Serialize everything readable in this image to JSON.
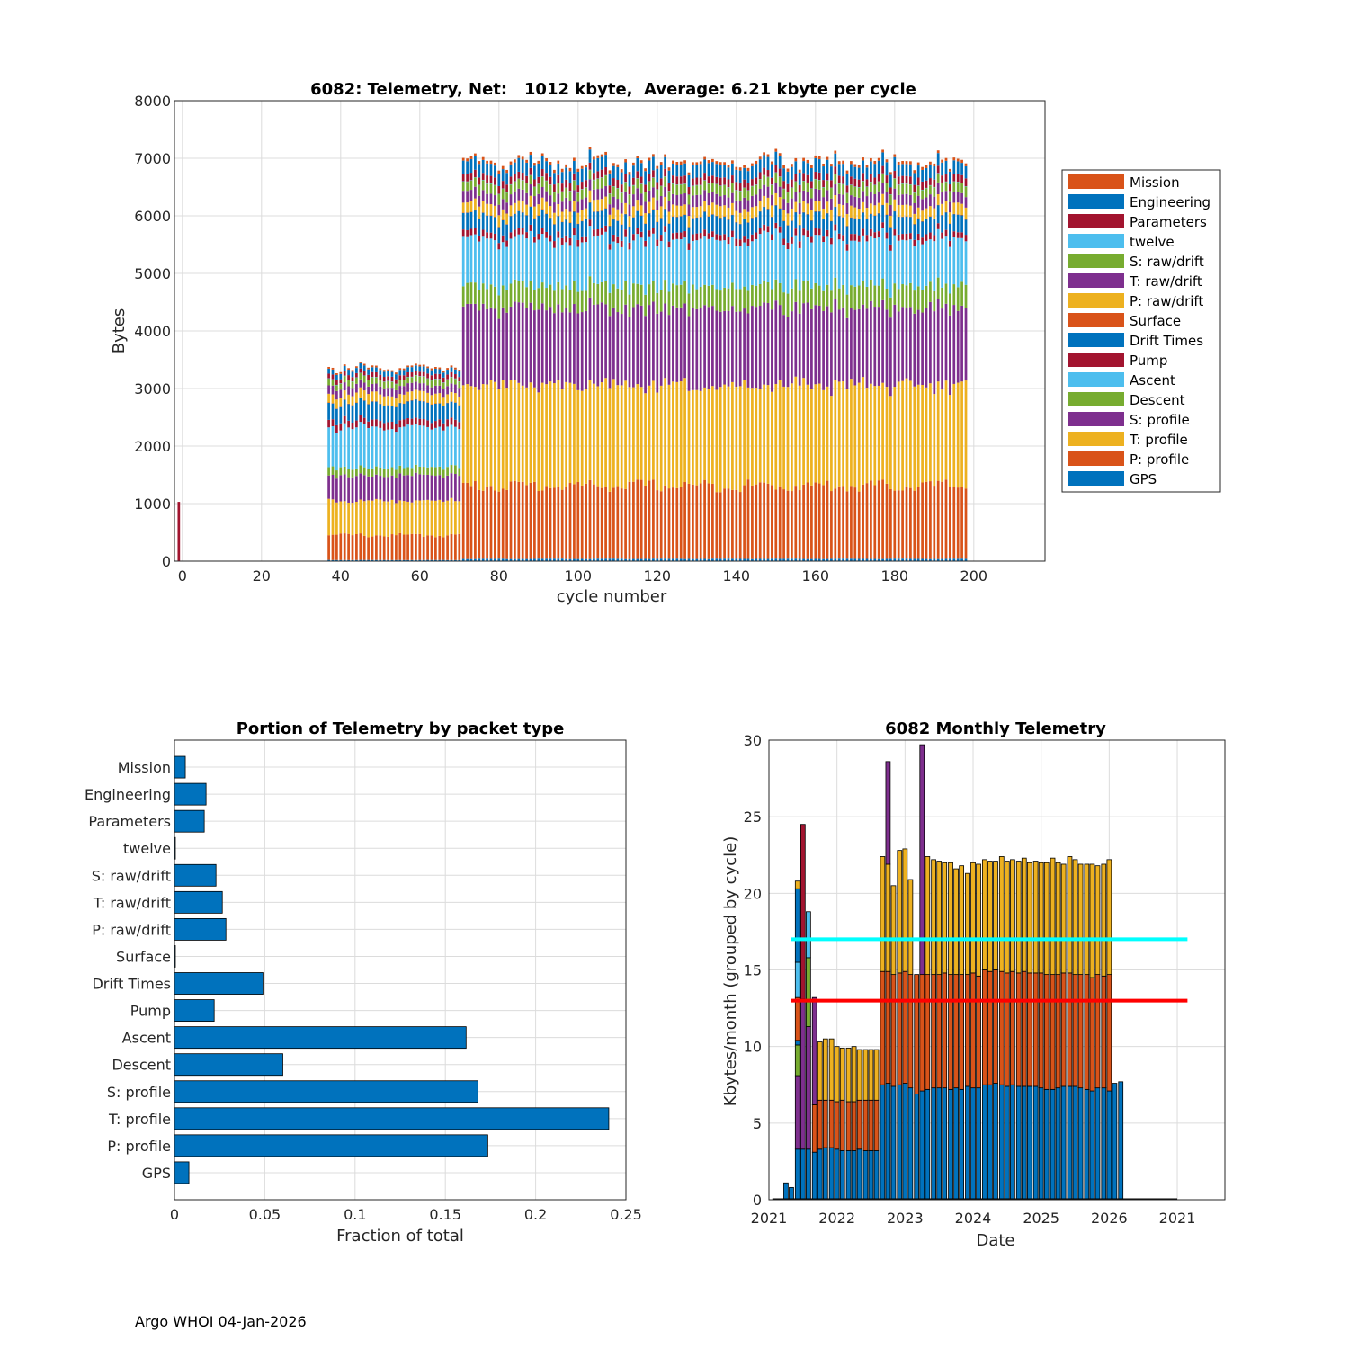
{
  "footer": "Argo WHOI 04-Jan-2026",
  "colors": {
    "blue": "#0072BD",
    "orange": "#D95319",
    "yellow": "#EDB120",
    "purple": "#7E2F8E",
    "green": "#77AC30",
    "cyan": "#4DBEEE",
    "red": "#A2142F",
    "ref_cyan": "#00FFFF",
    "ref_red": "#FF0000"
  },
  "chart_data": [
    {
      "type": "bar",
      "stacked": true,
      "title": "6082: Telemetry, Net:   1012 kbyte,  Average: 6.21 kbyte per cycle",
      "xlabel": "cycle number",
      "ylabel": "Bytes",
      "xlim": [
        -2,
        218
      ],
      "ylim": [
        0,
        8000
      ],
      "xticks": [
        0,
        20,
        40,
        60,
        80,
        100,
        120,
        140,
        160,
        180,
        200
      ],
      "yticks": [
        0,
        1000,
        2000,
        3000,
        4000,
        5000,
        6000,
        7000,
        8000
      ],
      "legend_position": "outside-right",
      "legend": [
        "Mission",
        "Engineering",
        "Parameters",
        "twelve",
        "S: raw/drift",
        "T: raw/drift",
        "P: raw/drift",
        "Surface",
        "Drift Times",
        "Pump",
        "Ascent",
        "Descent",
        "S: profile",
        "T: profile",
        "P: profile",
        "GPS"
      ],
      "legend_colors": [
        "#D95319",
        "#0072BD",
        "#A2142F",
        "#4DBEEE",
        "#77AC30",
        "#7E2F8E",
        "#EDB120",
        "#D95319",
        "#0072BD",
        "#A2142F",
        "#4DBEEE",
        "#77AC30",
        "#7E2F8E",
        "#EDB120",
        "#D95319",
        "#0072BD"
      ],
      "stack_order": [
        "GPS",
        "P: profile",
        "T: profile",
        "S: profile",
        "Descent",
        "Ascent",
        "Pump",
        "Drift Times",
        "Surface",
        "P: raw/drift",
        "T: raw/drift",
        "S: raw/drift",
        "twelve",
        "Parameters",
        "Engineering",
        "Mission"
      ],
      "groups": [
        {
          "name": "cycle 0",
          "cycles": [
            -1,
            0
          ],
          "components": {
            "Parameters": 1030
          }
        },
        {
          "name": "cycles 37-70",
          "cycles": [
            37,
            70
          ],
          "components": {
            "GPS": 20,
            "P: profile": 430,
            "T: profile": 590,
            "S: profile": 440,
            "Descent": 140,
            "Ascent": 700,
            "Pump": 120,
            "Drift Times": 300,
            "Surface": 5,
            "P: raw/drift": 160,
            "T: raw/drift": 140,
            "S: raw/drift": 110,
            "twelve": 5,
            "Parameters": 80,
            "Engineering": 90,
            "Mission": 30
          }
        },
        {
          "name": "cycles 71-198",
          "cycles": [
            71,
            198
          ],
          "components": {
            "GPS": 40,
            "P: profile": 1270,
            "T: profile": 1750,
            "S: profile": 1330,
            "Descent": 380,
            "Ascent": 810,
            "Pump": 110,
            "Drift Times": 290,
            "Surface": 5,
            "P: raw/drift": 190,
            "T: raw/drift": 190,
            "S: raw/drift": 170,
            "twelve": 5,
            "Parameters": 130,
            "Engineering": 220,
            "Mission": 50
          }
        }
      ],
      "totals_approx": {
        "cycles_37_70": [
          3330,
          3350,
          3290,
          3340,
          3360,
          3340,
          3220,
          3180,
          3270,
          3130,
          3100,
          3120,
          3200,
          3150,
          3180,
          3110,
          3120,
          3230,
          3210,
          3160,
          3150,
          3190,
          3110,
          3100,
          3220,
          3140,
          3180,
          3080,
          3100,
          3170,
          3130,
          3090,
          3160,
          3260
        ],
        "cycles_71_198_range": [
          6250,
          7480
        ]
      }
    },
    {
      "type": "bar",
      "orientation": "horizontal",
      "title": "Portion of Telemetry by packet type",
      "xlabel": "Fraction of total",
      "ylabel": "",
      "xlim": [
        0,
        0.25
      ],
      "xticks": [
        "0",
        "0.05",
        "0.1",
        "0.15",
        "0.2",
        "0.25"
      ],
      "categories": [
        "Mission",
        "Engineering",
        "Parameters",
        "twelve",
        "S: raw/drift",
        "T: raw/drift",
        "P: raw/drift",
        "Surface",
        "Drift Times",
        "Pump",
        "Ascent",
        "Descent",
        "S: profile",
        "T: profile",
        "P: profile",
        "GPS"
      ],
      "values": [
        0.006,
        0.0175,
        0.0165,
        0.0005,
        0.023,
        0.0265,
        0.0285,
        0.0005,
        0.049,
        0.022,
        0.1615,
        0.06,
        0.168,
        0.2405,
        0.1735,
        0.008
      ]
    },
    {
      "type": "bar",
      "stacked": true,
      "title": "6082 Monthly Telemetry",
      "xlabel": "Date",
      "ylabel": "Kbytes/month (grouped by cycle)",
      "ylim": [
        0,
        30
      ],
      "yticks": [
        0,
        5,
        10,
        15,
        20,
        25,
        30
      ],
      "xticks": [
        "2021",
        "2022",
        "2023",
        "2024",
        "2025",
        "2026",
        "2021"
      ],
      "xlim_years": [
        2021,
        2027.7
      ],
      "reference_lines": [
        {
          "y": 17,
          "color": "#00FFFF"
        },
        {
          "y": 13,
          "color": "#FF0000"
        }
      ],
      "months": [
        {
          "t": 2021.25,
          "segments": [
            1.1,
            0,
            0
          ]
        },
        {
          "t": 2021.33,
          "segments": [
            0.8,
            0,
            0
          ]
        },
        {
          "t": 2021.42,
          "segments": [
            3.3,
            0,
            0
          ],
          "extra": [
            {
              "color": "#7E2F8E",
              "value": 4.8
            },
            {
              "color": "#77AC30",
              "value": 2.0
            },
            {
              "color": "#0072BD",
              "value": 0.3
            },
            {
              "color": "#D95319",
              "value": 2.8
            },
            {
              "color": "#4DBEEE",
              "value": 2.3
            },
            {
              "color": "#0072BD",
              "value": 4.8
            },
            {
              "color": "#EDB120",
              "value": 0.5
            }
          ]
        },
        {
          "t": 2021.5,
          "segments": [
            3.3,
            0,
            0
          ],
          "extra": [
            {
              "color": "#7E2F8E",
              "value": 9.8
            },
            {
              "color": "#A2142F",
              "value": 11.4
            }
          ]
        },
        {
          "t": 2021.58,
          "segments": [
            3.3,
            0,
            0
          ],
          "extra": [
            {
              "color": "#7E2F8E",
              "value": 8.0
            },
            {
              "color": "#77AC30",
              "value": 4.5
            },
            {
              "color": "#4DBEEE",
              "value": 3.0
            }
          ]
        },
        {
          "t": 2021.67,
          "segments": [
            3.1,
            3.1,
            0
          ],
          "extra": [
            {
              "color": "#7E2F8E",
              "value": 7.0
            }
          ]
        },
        {
          "t": 2021.75,
          "segments": [
            3.3,
            3.2,
            3.8
          ]
        },
        {
          "t": 2021.83,
          "segments": [
            3.4,
            3.1,
            4.0
          ]
        },
        {
          "t": 2021.92,
          "segments": [
            3.4,
            3.1,
            4.0
          ]
        },
        {
          "t": 2022.0,
          "segments": [
            3.3,
            3.1,
            3.6
          ]
        },
        {
          "t": 2022.08,
          "segments": [
            3.2,
            3.3,
            3.4
          ]
        },
        {
          "t": 2022.17,
          "segments": [
            3.2,
            3.2,
            3.5
          ]
        },
        {
          "t": 2022.25,
          "segments": [
            3.2,
            3.2,
            3.6
          ]
        },
        {
          "t": 2022.33,
          "segments": [
            3.3,
            3.2,
            3.3
          ]
        },
        {
          "t": 2022.42,
          "segments": [
            3.2,
            3.3,
            3.3
          ]
        },
        {
          "t": 2022.5,
          "segments": [
            3.2,
            3.3,
            3.3
          ]
        },
        {
          "t": 2022.58,
          "segments": [
            3.2,
            3.3,
            3.3
          ]
        },
        {
          "t": 2022.67,
          "segments": [
            7.5,
            7.4,
            7.5
          ]
        },
        {
          "t": 2022.75,
          "segments": [
            7.6,
            7.3,
            7.0
          ],
          "extra": [
            {
              "color": "#7E2F8E",
              "value": 6.7
            }
          ]
        },
        {
          "t": 2022.83,
          "segments": [
            7.4,
            7.3,
            5.8
          ]
        },
        {
          "t": 2022.92,
          "segments": [
            7.5,
            7.3,
            8.0
          ]
        },
        {
          "t": 2023.0,
          "segments": [
            7.6,
            7.3,
            8.0
          ]
        },
        {
          "t": 2023.08,
          "segments": [
            7.3,
            7.4,
            6.2
          ]
        },
        {
          "t": 2023.17,
          "segments": [
            6.9,
            7.8,
            0
          ]
        },
        {
          "t": 2023.25,
          "segments": [
            7.1,
            7.6,
            0
          ],
          "extra": [
            {
              "color": "#7E2F8E",
              "value": 15.0
            }
          ]
        },
        {
          "t": 2023.33,
          "segments": [
            7.2,
            7.5,
            7.7
          ]
        },
        {
          "t": 2023.42,
          "segments": [
            7.3,
            7.4,
            7.5
          ]
        },
        {
          "t": 2023.5,
          "segments": [
            7.3,
            7.4,
            7.4
          ]
        },
        {
          "t": 2023.58,
          "segments": [
            7.3,
            7.5,
            7.2
          ]
        },
        {
          "t": 2023.67,
          "segments": [
            7.2,
            7.5,
            7.3
          ]
        },
        {
          "t": 2023.75,
          "segments": [
            7.3,
            7.4,
            6.9
          ]
        },
        {
          "t": 2023.83,
          "segments": [
            7.2,
            7.5,
            7.1
          ]
        },
        {
          "t": 2023.92,
          "segments": [
            7.4,
            7.3,
            6.6
          ]
        },
        {
          "t": 2024.0,
          "segments": [
            7.3,
            7.5,
            7.2
          ]
        },
        {
          "t": 2024.08,
          "segments": [
            7.3,
            7.3,
            7.3
          ]
        },
        {
          "t": 2024.17,
          "segments": [
            7.5,
            7.5,
            7.2
          ]
        },
        {
          "t": 2024.25,
          "segments": [
            7.5,
            7.4,
            7.2
          ]
        },
        {
          "t": 2024.33,
          "segments": [
            7.6,
            7.4,
            7.1
          ]
        },
        {
          "t": 2024.42,
          "segments": [
            7.5,
            7.4,
            7.5
          ]
        },
        {
          "t": 2024.5,
          "segments": [
            7.4,
            7.4,
            7.3
          ]
        },
        {
          "t": 2024.58,
          "segments": [
            7.5,
            7.4,
            7.3
          ]
        },
        {
          "t": 2024.67,
          "segments": [
            7.4,
            7.4,
            7.3
          ]
        },
        {
          "t": 2024.75,
          "segments": [
            7.4,
            7.5,
            7.4
          ]
        },
        {
          "t": 2024.83,
          "segments": [
            7.4,
            7.4,
            7.2
          ]
        },
        {
          "t": 2024.92,
          "segments": [
            7.4,
            7.4,
            7.3
          ]
        },
        {
          "t": 2025.0,
          "segments": [
            7.3,
            7.5,
            7.2
          ]
        },
        {
          "t": 2025.08,
          "segments": [
            7.2,
            7.5,
            7.3
          ]
        },
        {
          "t": 2025.17,
          "segments": [
            7.2,
            7.5,
            7.6
          ]
        },
        {
          "t": 2025.25,
          "segments": [
            7.3,
            7.4,
            7.3
          ]
        },
        {
          "t": 2025.33,
          "segments": [
            7.4,
            7.4,
            7.1
          ]
        },
        {
          "t": 2025.42,
          "segments": [
            7.4,
            7.4,
            7.6
          ]
        },
        {
          "t": 2025.5,
          "segments": [
            7.4,
            7.3,
            7.5
          ]
        },
        {
          "t": 2025.58,
          "segments": [
            7.3,
            7.4,
            7.2
          ]
        },
        {
          "t": 2025.67,
          "segments": [
            7.2,
            7.5,
            7.2
          ]
        },
        {
          "t": 2025.75,
          "segments": [
            7.1,
            7.4,
            7.4
          ]
        },
        {
          "t": 2025.83,
          "segments": [
            7.3,
            7.4,
            7.1
          ]
        },
        {
          "t": 2025.92,
          "segments": [
            7.3,
            7.3,
            7.3
          ]
        },
        {
          "t": 2026.0,
          "segments": [
            7.1,
            7.6,
            7.5
          ]
        },
        {
          "t": 2026.08,
          "segments": [
            7.6,
            0,
            0
          ]
        },
        {
          "t": 2026.17,
          "segments": [
            7.7,
            0,
            0
          ]
        }
      ]
    }
  ]
}
